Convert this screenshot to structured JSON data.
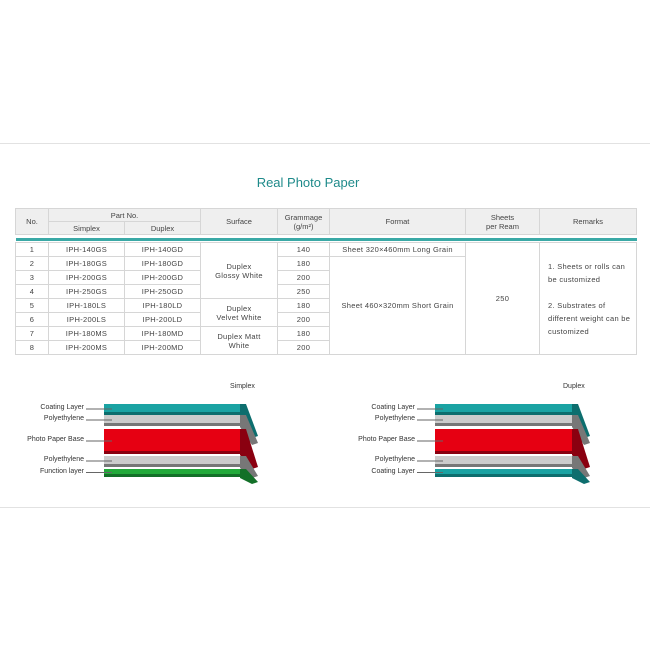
{
  "title": "Real Photo Paper",
  "table": {
    "headers": {
      "no": "No.",
      "part_no": "Part No.",
      "simplex": "Simplex",
      "duplex": "Duplex",
      "surface": "Surface",
      "grammage": "Grammage",
      "grammage_unit": "(g/m²)",
      "format": "Format",
      "sheets": "Sheets",
      "sheets2": "per Ream",
      "remarks": "Remarks"
    },
    "rows": [
      {
        "no": "1",
        "simplex": "IPH-140GS",
        "duplex": "IPH-140GD",
        "grammage": "140"
      },
      {
        "no": "2",
        "simplex": "IPH-180GS",
        "duplex": "IPH-180GD",
        "grammage": "180"
      },
      {
        "no": "3",
        "simplex": "IPH-200GS",
        "duplex": "IPH-200GD",
        "grammage": "200"
      },
      {
        "no": "4",
        "simplex": "IPH-250GS",
        "duplex": "IPH-250GD",
        "grammage": "250"
      },
      {
        "no": "5",
        "simplex": "IPH-180LS",
        "duplex": "IPH-180LD",
        "grammage": "180"
      },
      {
        "no": "6",
        "simplex": "IPH-200LS",
        "duplex": "IPH-200LD",
        "grammage": "200"
      },
      {
        "no": "7",
        "simplex": "IPH-180MS",
        "duplex": "IPH-180MD",
        "grammage": "180"
      },
      {
        "no": "8",
        "simplex": "IPH-200MS",
        "duplex": "IPH-200MD",
        "grammage": "200"
      }
    ],
    "surfaces": [
      "Duplex Glossy White",
      "Duplex Velvet White",
      "Duplex Matt White"
    ],
    "formats": [
      "Sheet 320×460mm Long Grain",
      "Sheet 460×320mm Short Grain"
    ],
    "sheets_per_ream": "250",
    "remarks": [
      "1. Sheets or rolls can be customized",
      "2. Substrates of different weight can be customized"
    ]
  },
  "simplex": {
    "title": "Simplex",
    "layers": [
      "Coating Layer",
      "Polyethylene",
      "Photo Paper Base",
      "Polyethylene",
      "Function layer"
    ]
  },
  "duplex": {
    "title": "Duplex",
    "layers": [
      "Coating Layer",
      "Polyethylene",
      "Photo Paper Base",
      "Polyethylene",
      "Coating Layer"
    ]
  },
  "colors": {
    "teal": "#1aa3a3",
    "red": "#e60012",
    "green": "#22aa3a",
    "grey": "#cccccc"
  }
}
